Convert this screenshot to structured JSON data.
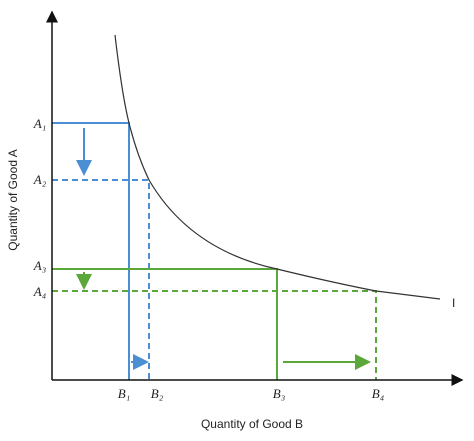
{
  "axes": {
    "y_label": "Quantity of Good A",
    "x_label": "Quantity of Good B"
  },
  "curve_label": "I",
  "y_points": [
    "A₁",
    "A₂",
    "A₃",
    "A₄"
  ],
  "x_points": [
    "B₁",
    "B₂",
    "B₃",
    "B₄"
  ]
}
